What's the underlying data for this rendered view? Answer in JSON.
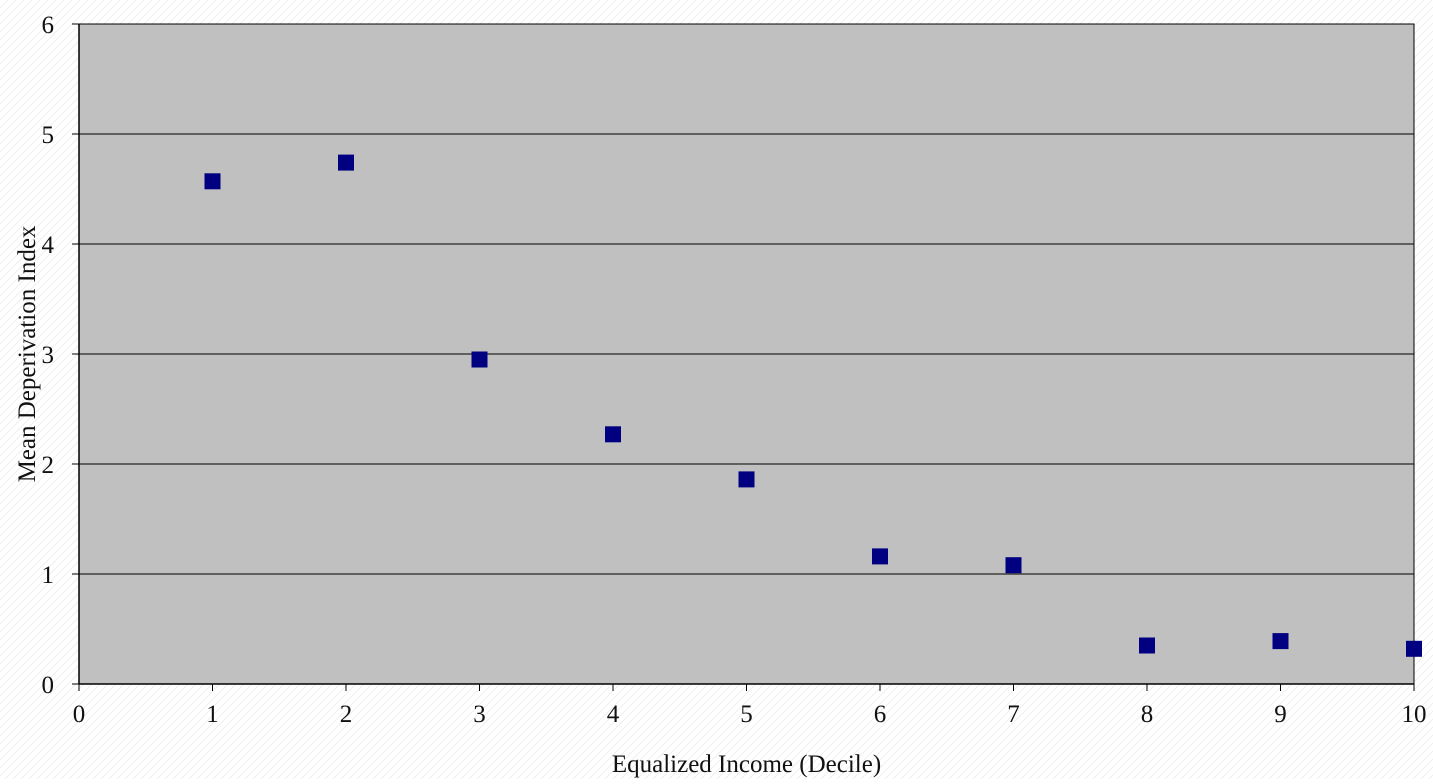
{
  "chart_data": {
    "type": "scatter",
    "title": "",
    "xlabel": "Equalized Income (Decile)",
    "ylabel": "Mean Deperivation Index",
    "xlim": [
      0,
      10
    ],
    "ylim": [
      0,
      6
    ],
    "x_ticks": [
      0,
      1,
      2,
      3,
      4,
      5,
      6,
      7,
      8,
      9,
      10
    ],
    "y_ticks": [
      0,
      1,
      2,
      3,
      4,
      5,
      6
    ],
    "grid": "horizontal",
    "legend": "none",
    "series": [
      {
        "x": [
          1,
          2,
          3,
          4,
          5,
          6,
          7,
          8,
          9,
          10
        ],
        "y": [
          4.57,
          4.74,
          2.95,
          2.27,
          1.86,
          1.16,
          1.08,
          0.35,
          0.39,
          0.32
        ]
      }
    ],
    "colors": {
      "plot_background": "#c0c0c0",
      "marker": "#000080",
      "gridline": "#000000",
      "axis": "#000000"
    }
  }
}
